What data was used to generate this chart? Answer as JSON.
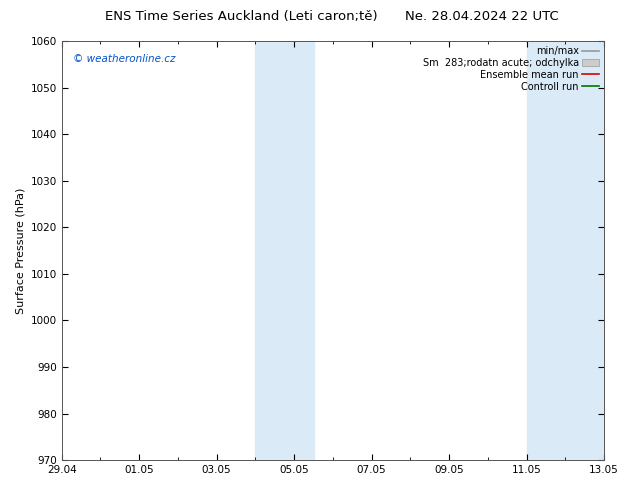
{
  "title_left": "ENS Time Series Auckland (Leti caron;tě)",
  "title_right": "Ne. 28.04.2024 22 UTC",
  "ylabel": "Surface Pressure (hPa)",
  "ylim": [
    970,
    1060
  ],
  "yticks": [
    970,
    980,
    990,
    1000,
    1010,
    1020,
    1030,
    1040,
    1050,
    1060
  ],
  "xtick_labels": [
    "29.04",
    "01.05",
    "03.05",
    "05.05",
    "07.05",
    "09.05",
    "11.05",
    "13.05"
  ],
  "xtick_positions": [
    0,
    2,
    4,
    6,
    8,
    10,
    12,
    14
  ],
  "shaded_bands": [
    {
      "x_start": 5.0,
      "x_end": 6.5,
      "color": "#daeaf7"
    },
    {
      "x_start": 12.0,
      "x_end": 14.0,
      "color": "#daeaf7"
    }
  ],
  "watermark": "© weatheronline.cz",
  "watermark_color": "#0055cc",
  "bg_color": "#ffffff",
  "plot_bg_color": "#ffffff",
  "legend_minmax_color": "#999999",
  "legend_band_color": "#cccccc",
  "legend_ens_color": "#dd0000",
  "legend_ctrl_color": "#007700",
  "title_fontsize": 9.5,
  "axis_label_fontsize": 8,
  "tick_fontsize": 7.5,
  "legend_fontsize": 7,
  "watermark_fontsize": 7.5
}
